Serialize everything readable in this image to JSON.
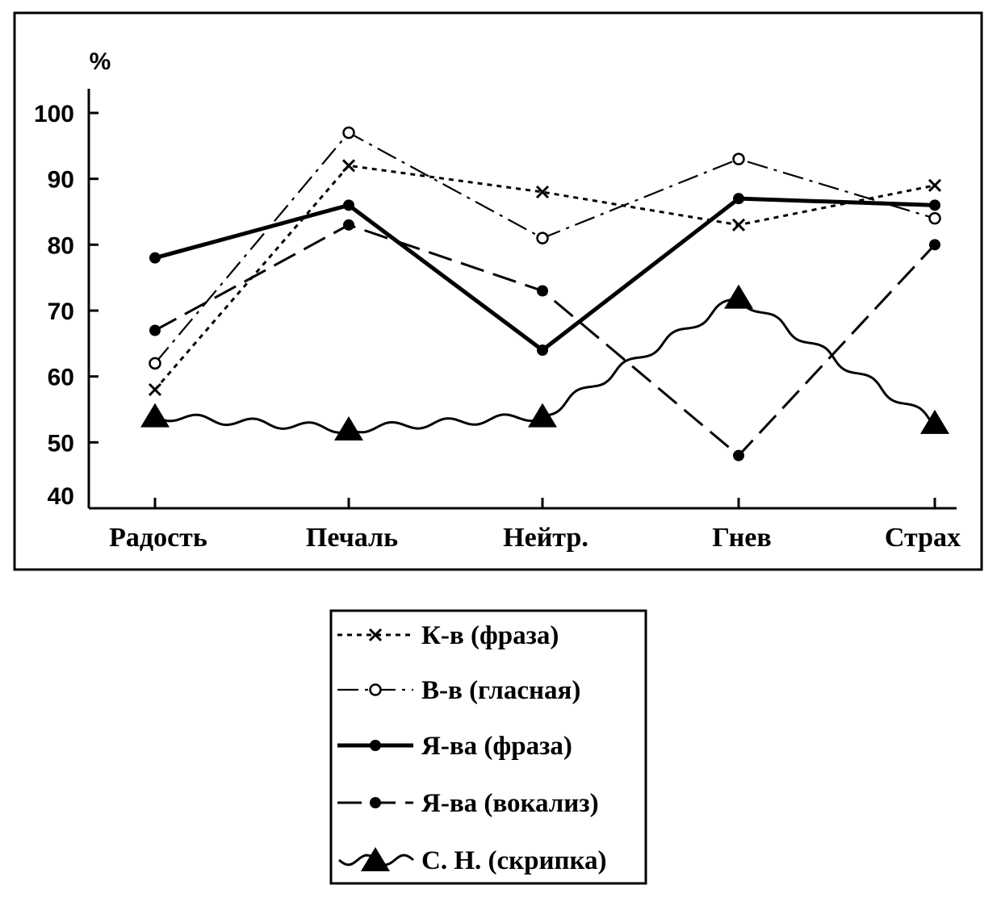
{
  "chart_data": {
    "type": "line",
    "title": "",
    "xlabel": "",
    "ylabel": "%",
    "ylim": [
      40,
      100
    ],
    "yticks": [
      100,
      90,
      80,
      70,
      60,
      50,
      40
    ],
    "categories": [
      "Радость",
      "Печаль",
      "Нейтр.",
      "Гнев",
      "Страх"
    ],
    "grid": false,
    "legend_position": "bottom",
    "series": [
      {
        "name": "К-в (фраза)",
        "values": [
          58,
          92,
          88,
          83,
          89
        ],
        "marker": "x",
        "line": "dotted"
      },
      {
        "name": "В-в (гласная)",
        "values": [
          62,
          97,
          81,
          93,
          84
        ],
        "marker": "open-circle",
        "line": "dash-dot"
      },
      {
        "name": "Я-ва (фраза)",
        "values": [
          78,
          86,
          64,
          87,
          86
        ],
        "marker": "filled-circle",
        "line": "solid-thick"
      },
      {
        "name": "Я-ва (вокализ)",
        "values": [
          67,
          83,
          73,
          48,
          80
        ],
        "marker": "filled-circle",
        "line": "long-dash"
      },
      {
        "name": "С. Н. (скрипка)",
        "values": [
          54,
          52,
          54,
          72,
          53
        ],
        "marker": "triangle",
        "line": "wavy"
      }
    ],
    "colors": {
      "ink": "#000000",
      "background": "#ffffff"
    }
  }
}
